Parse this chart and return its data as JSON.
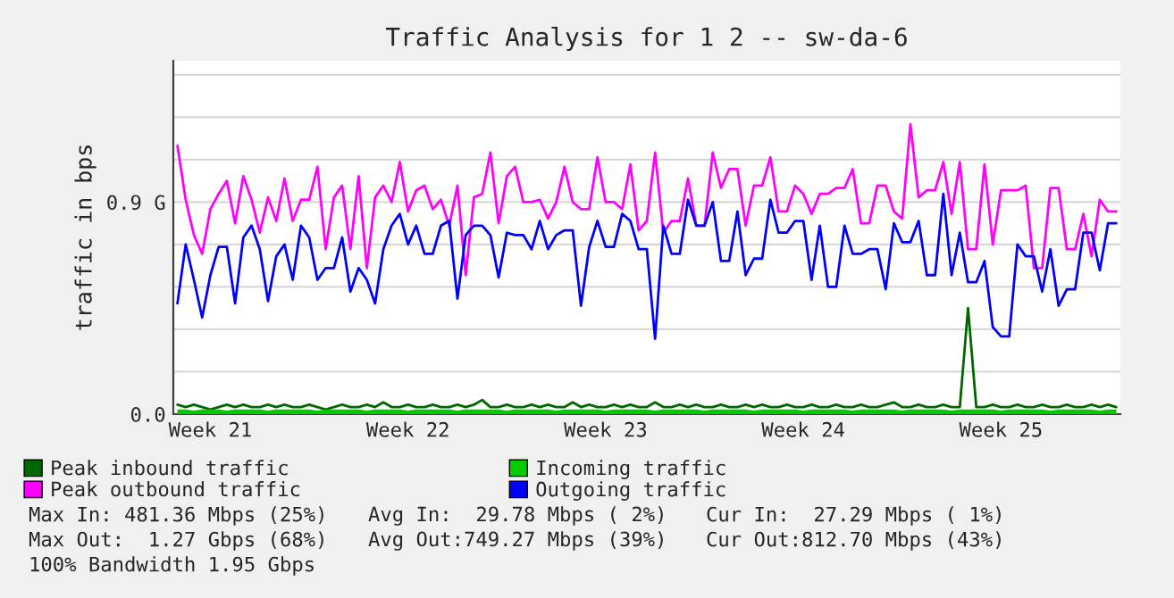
{
  "chart_data": {
    "type": "line",
    "title": "Traffic Analysis for 1 2 -- sw-da-6",
    "ylabel": "traffic in bps",
    "categories": [
      null,
      null,
      null,
      null,
      "Week 21",
      null,
      null,
      null,
      null,
      null,
      null,
      null,
      null,
      null,
      null,
      null,
      null,
      null,
      null,
      null,
      null,
      null,
      null,
      null,
      null,
      null,
      null,
      null,
      "Week 22",
      null,
      null,
      null,
      null,
      null,
      null,
      null,
      null,
      null,
      null,
      null,
      null,
      null,
      null,
      null,
      null,
      null,
      null,
      null,
      null,
      null,
      null,
      null,
      "Week 23",
      null,
      null,
      null,
      null,
      null,
      null,
      null,
      null,
      null,
      null,
      null,
      null,
      null,
      null,
      null,
      null,
      null,
      null,
      null,
      null,
      null,
      null,
      null,
      "Week 24",
      null,
      null,
      null,
      null,
      null,
      null,
      null,
      null,
      null,
      null,
      null,
      null,
      null,
      null,
      null,
      null,
      null,
      null,
      null,
      null,
      null,
      null,
      null,
      "Week 25",
      null,
      null,
      null,
      null,
      null,
      null,
      null,
      null,
      null,
      null,
      null,
      null,
      null,
      null
    ],
    "ylim": [
      0,
      1.5
    ],
    "yticks": [
      {
        "value": 0,
        "label": "0.0"
      },
      {
        "value": 0.9,
        "label": "0.9 G"
      },
      {
        "value": 0.18,
        "label": null
      },
      {
        "value": 0.36,
        "label": null
      },
      {
        "value": 0.54,
        "label": null
      },
      {
        "value": 0.72,
        "label": null
      },
      {
        "value": 1.08,
        "label": null
      },
      {
        "value": 1.26,
        "label": null
      },
      {
        "value": 1.44,
        "label": null
      }
    ],
    "grid": "y",
    "legend": "bottom",
    "series": [
      {
        "name": "Peak inbound traffic",
        "color": "#006600",
        "values": [
          0.04,
          0.03,
          0.04,
          0.03,
          0.02,
          0.03,
          0.04,
          0.03,
          0.04,
          0.03,
          0.03,
          0.04,
          0.03,
          0.04,
          0.03,
          0.03,
          0.04,
          0.03,
          0.02,
          0.03,
          0.04,
          0.03,
          0.03,
          0.04,
          0.03,
          0.05,
          0.03,
          0.03,
          0.04,
          0.03,
          0.03,
          0.04,
          0.03,
          0.03,
          0.04,
          0.03,
          0.04,
          0.06,
          0.03,
          0.03,
          0.04,
          0.03,
          0.03,
          0.04,
          0.03,
          0.04,
          0.03,
          0.03,
          0.05,
          0.03,
          0.04,
          0.03,
          0.03,
          0.04,
          0.03,
          0.04,
          0.03,
          0.03,
          0.05,
          0.03,
          0.03,
          0.04,
          0.03,
          0.04,
          0.03,
          0.03,
          0.04,
          0.03,
          0.03,
          0.04,
          0.03,
          0.04,
          0.03,
          0.03,
          0.04,
          0.03,
          0.03,
          0.04,
          0.03,
          0.03,
          0.04,
          0.03,
          0.03,
          0.04,
          0.03,
          0.03,
          0.04,
          0.05,
          0.03,
          0.03,
          0.04,
          0.03,
          0.03,
          0.04,
          0.03,
          0.03,
          0.45,
          0.03,
          0.03,
          0.04,
          0.03,
          0.03,
          0.04,
          0.03,
          0.03,
          0.04,
          0.03,
          0.03,
          0.04,
          0.03,
          0.03,
          0.04,
          0.03,
          0.04,
          0.03
        ]
      },
      {
        "name": "Incoming traffic",
        "color": "#00cc00",
        "type": "area",
        "values": [
          0.02,
          0.02,
          0.015,
          0.02,
          0.02,
          0.02,
          0.015,
          0.02,
          0.02,
          0.02,
          0.02,
          0.015,
          0.02,
          0.02,
          0.02,
          0.02,
          0.02,
          0.015,
          0.02,
          0.02,
          0.02,
          0.02,
          0.02,
          0.015,
          0.02,
          0.02,
          0.02,
          0.02,
          0.015,
          0.02,
          0.02,
          0.02,
          0.02,
          0.02,
          0.015,
          0.02,
          0.02,
          0.02,
          0.02,
          0.02,
          0.015,
          0.02,
          0.02,
          0.02,
          0.02,
          0.02,
          0.015,
          0.02,
          0.02,
          0.02,
          0.02,
          0.02,
          0.015,
          0.02,
          0.02,
          0.02,
          0.02,
          0.02,
          0.015,
          0.02,
          0.02,
          0.02,
          0.02,
          0.02,
          0.015,
          0.02,
          0.02,
          0.02,
          0.02,
          0.02,
          0.015,
          0.02,
          0.02,
          0.02,
          0.02,
          0.02,
          0.015,
          0.02,
          0.02,
          0.02,
          0.02,
          0.02,
          0.015,
          0.02,
          0.02,
          0.02,
          0.02,
          0.02,
          0.015,
          0.02,
          0.02,
          0.02,
          0.02,
          0.02,
          0.015,
          0.02,
          0.02,
          0.02,
          0.02,
          0.02,
          0.015,
          0.02,
          0.02,
          0.02,
          0.02,
          0.02,
          0.015,
          0.02,
          0.02,
          0.02,
          0.02,
          0.02,
          0.015,
          0.02,
          0.02
        ]
      },
      {
        "name": "Peak outbound traffic",
        "color": "#ff00ff",
        "values": [
          1.14,
          0.91,
          0.76,
          0.68,
          0.87,
          0.935,
          0.99,
          0.81,
          1.01,
          0.91,
          0.77,
          0.92,
          0.82,
          1.0,
          0.82,
          0.91,
          0.91,
          1.05,
          0.7,
          0.92,
          0.97,
          0.7,
          1.01,
          0.62,
          0.92,
          0.97,
          0.9,
          1.07,
          0.86,
          0.95,
          0.97,
          0.87,
          0.91,
          0.8,
          0.97,
          0.59,
          0.92,
          0.935,
          1.11,
          0.81,
          1.01,
          1.05,
          0.9,
          0.9,
          0.91,
          0.83,
          0.9,
          1.05,
          0.9,
          0.87,
          0.87,
          1.09,
          0.9,
          0.9,
          0.87,
          1.06,
          0.78,
          0.82,
          1.11,
          0.77,
          0.82,
          0.82,
          1.0,
          0.8,
          0.8,
          1.11,
          0.96,
          1.04,
          1.04,
          0.8,
          0.97,
          0.97,
          1.09,
          0.86,
          0.86,
          0.97,
          0.935,
          0.85,
          0.935,
          0.935,
          0.96,
          0.96,
          1.04,
          0.81,
          0.81,
          0.97,
          0.97,
          0.86,
          0.83,
          1.23,
          0.92,
          0.95,
          0.95,
          1.07,
          0.85,
          1.07,
          0.7,
          0.7,
          1.06,
          0.72,
          0.95,
          0.95,
          0.95,
          0.97,
          0.62,
          0.62,
          0.96,
          0.96,
          0.7,
          0.7,
          0.85,
          0.67,
          0.91,
          0.86,
          0.86
        ]
      },
      {
        "name": "Outgoing traffic",
        "color": "#0000ff",
        "values": [
          0.47,
          0.72,
          0.57,
          0.41,
          0.59,
          0.71,
          0.71,
          0.47,
          0.75,
          0.8,
          0.7,
          0.48,
          0.67,
          0.72,
          0.57,
          0.8,
          0.75,
          0.57,
          0.62,
          0.62,
          0.75,
          0.52,
          0.62,
          0.57,
          0.47,
          0.7,
          0.8,
          0.85,
          0.72,
          0.8,
          0.68,
          0.68,
          0.8,
          0.82,
          0.49,
          0.76,
          0.8,
          0.8,
          0.76,
          0.58,
          0.77,
          0.76,
          0.76,
          0.7,
          0.82,
          0.7,
          0.76,
          0.78,
          0.78,
          0.46,
          0.71,
          0.82,
          0.71,
          0.71,
          0.85,
          0.82,
          0.7,
          0.7,
          0.32,
          0.8,
          0.68,
          0.68,
          0.91,
          0.8,
          0.8,
          0.9,
          0.65,
          0.65,
          0.86,
          0.59,
          0.66,
          0.66,
          0.91,
          0.77,
          0.77,
          0.82,
          0.82,
          0.57,
          0.8,
          0.54,
          0.54,
          0.8,
          0.68,
          0.68,
          0.7,
          0.7,
          0.53,
          0.81,
          0.73,
          0.73,
          0.82,
          0.59,
          0.59,
          0.935,
          0.59,
          0.77,
          0.56,
          0.56,
          0.65,
          0.37,
          0.33,
          0.33,
          0.72,
          0.67,
          0.67,
          0.52,
          0.7,
          0.46,
          0.53,
          0.53,
          0.77,
          0.77,
          0.61,
          0.81,
          0.81
        ]
      }
    ],
    "annotations": [
      "Max In: 481.36 Mbps (25%)",
      "Avg In:  29.78 Mbps ( 2%)",
      "Cur In:  27.29 Mbps ( 1%)",
      "Max Out:  1.27 Gbps (68%)",
      "Avg Out:749.27 Mbps (39%)",
      "Cur Out:812.70 Mbps (43%)",
      "100% Bandwidth 1.95 Gbps"
    ]
  }
}
